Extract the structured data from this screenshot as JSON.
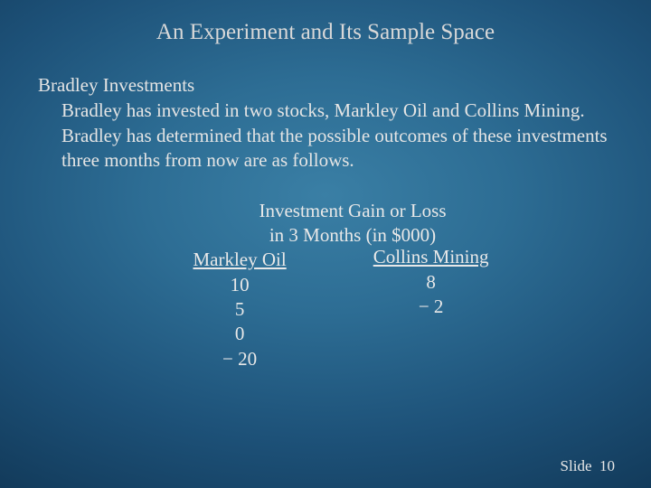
{
  "colors": {
    "background_gradient": [
      "#3a7fa5",
      "#2d6d94",
      "#1d5178",
      "#123a5a",
      "#0a2842",
      "#051a2e"
    ],
    "text_color": "#e8e8e8"
  },
  "typography": {
    "family": "Palatino, Book Antiqua, Georgia, serif",
    "title_fontsize": 25,
    "body_fontsize": 21,
    "footer_fontsize": 17
  },
  "title": "An Experiment and Its Sample Space",
  "subheading": "Bradley Investments",
  "body": "Bradley has invested in two stocks, Markley Oil and Collins Mining.  Bradley has determined that the possible outcomes of these investments three months from now are as follows.",
  "table": {
    "caption_line1": "Investment Gain or Loss",
    "caption_line2": "in 3 Months (in $000)",
    "columns": [
      {
        "header": "Markley Oil",
        "values": [
          "10",
          "5",
          "0",
          "− 20"
        ]
      },
      {
        "header": "Collins Mining",
        "values": [
          "8",
          "− 2"
        ]
      }
    ]
  },
  "footer": {
    "label": "Slide",
    "number": "10"
  }
}
